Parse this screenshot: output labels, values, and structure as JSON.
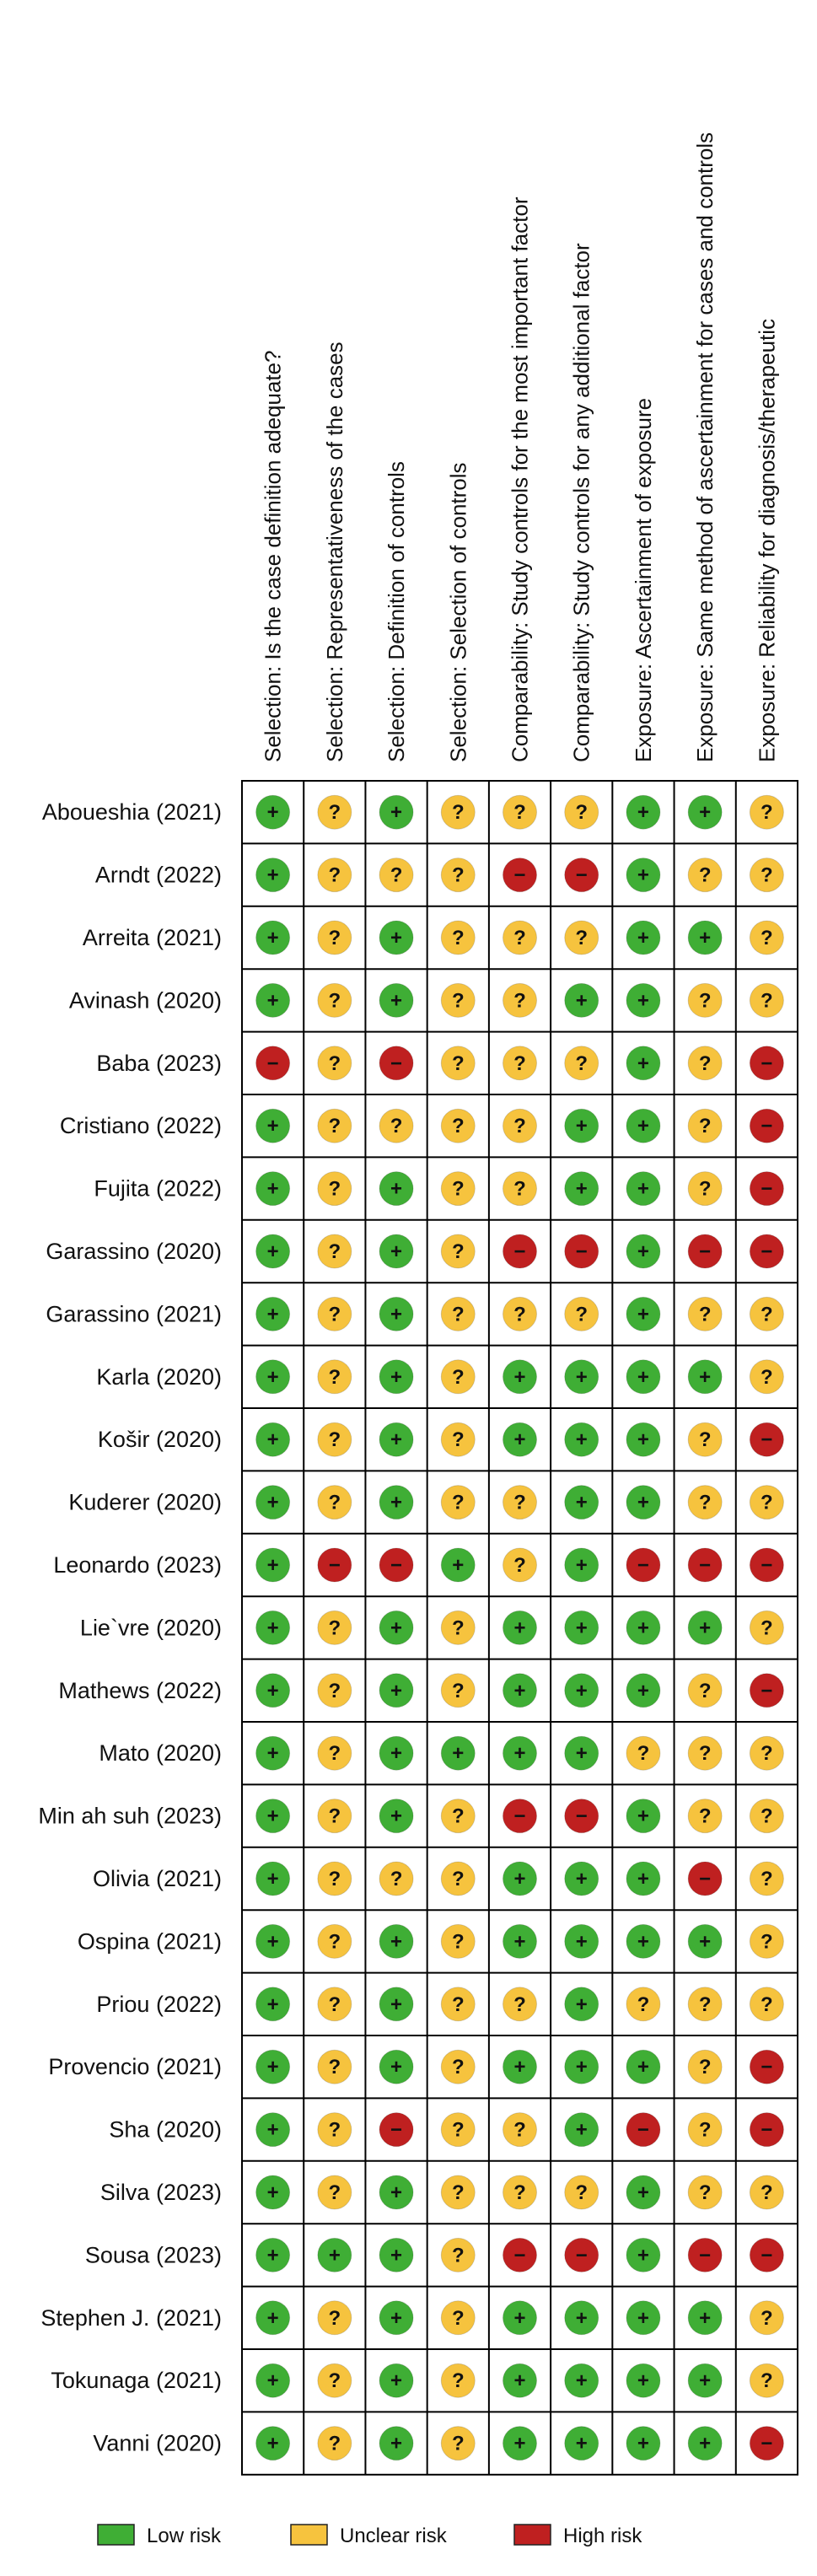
{
  "columns": [
    "Selection: Is the case definition adequate?",
    "Selection: Representativeness of the cases",
    "Selection: Definition of controls",
    "Selection: Selection of controls",
    "Comparability: Study controls for the most important factor",
    "Comparability: Study controls for any additional factor",
    "Exposure: Ascertainment of exposure",
    "Exposure: Same method of ascertainment for cases and controls",
    "Exposure: Reliability for diagnosis/therapeutic"
  ],
  "rows": [
    {
      "study": "Aboueshia (2021)",
      "ratings": [
        "+",
        "?",
        "+",
        "?",
        "?",
        "?",
        "+",
        "+",
        "?"
      ]
    },
    {
      "study": "Arndt (2022)",
      "ratings": [
        "+",
        "?",
        "?",
        "?",
        "−",
        "−",
        "+",
        "?",
        "?"
      ]
    },
    {
      "study": "Arreita (2021)",
      "ratings": [
        "+",
        "?",
        "+",
        "?",
        "?",
        "?",
        "+",
        "+",
        "?"
      ]
    },
    {
      "study": "Avinash (2020)",
      "ratings": [
        "+",
        "?",
        "+",
        "?",
        "?",
        "+",
        "+",
        "?",
        "?"
      ]
    },
    {
      "study": "Baba (2023)",
      "ratings": [
        "−",
        "?",
        "−",
        "?",
        "?",
        "?",
        "+",
        "?",
        "−"
      ]
    },
    {
      "study": "Cristiano (2022)",
      "ratings": [
        "+",
        "?",
        "?",
        "?",
        "?",
        "+",
        "+",
        "?",
        "−"
      ]
    },
    {
      "study": "Fujita (2022)",
      "ratings": [
        "+",
        "?",
        "+",
        "?",
        "?",
        "+",
        "+",
        "?",
        "−"
      ]
    },
    {
      "study": "Garassino (2020)",
      "ratings": [
        "+",
        "?",
        "+",
        "?",
        "−",
        "−",
        "+",
        "−",
        "−"
      ]
    },
    {
      "study": "Garassino (2021)",
      "ratings": [
        "+",
        "?",
        "+",
        "?",
        "?",
        "?",
        "+",
        "?",
        "?"
      ]
    },
    {
      "study": "Karla (2020)",
      "ratings": [
        "+",
        "?",
        "+",
        "?",
        "+",
        "+",
        "+",
        "+",
        "?"
      ]
    },
    {
      "study": "Košir (2020)",
      "ratings": [
        "+",
        "?",
        "+",
        "?",
        "+",
        "+",
        "+",
        "?",
        "−"
      ]
    },
    {
      "study": "Kuderer (2020)",
      "ratings": [
        "+",
        "?",
        "+",
        "?",
        "?",
        "+",
        "+",
        "?",
        "?"
      ]
    },
    {
      "study": "Leonardo (2023)",
      "ratings": [
        "+",
        "−",
        "−",
        "+",
        "?",
        "+",
        "−",
        "−",
        "−"
      ]
    },
    {
      "study": "Lie`vre (2020)",
      "ratings": [
        "+",
        "?",
        "+",
        "?",
        "+",
        "+",
        "+",
        "+",
        "?"
      ]
    },
    {
      "study": "Mathews (2022)",
      "ratings": [
        "+",
        "?",
        "+",
        "?",
        "+",
        "+",
        "+",
        "?",
        "−"
      ]
    },
    {
      "study": "Mato (2020)",
      "ratings": [
        "+",
        "?",
        "+",
        "+",
        "+",
        "+",
        "?",
        "?",
        "?"
      ]
    },
    {
      "study": "Min ah suh (2023)",
      "ratings": [
        "+",
        "?",
        "+",
        "?",
        "−",
        "−",
        "+",
        "?",
        "?"
      ]
    },
    {
      "study": "Olivia (2021)",
      "ratings": [
        "+",
        "?",
        "?",
        "?",
        "+",
        "+",
        "+",
        "−",
        "?"
      ]
    },
    {
      "study": "Ospina (2021)",
      "ratings": [
        "+",
        "?",
        "+",
        "?",
        "+",
        "+",
        "+",
        "+",
        "?"
      ]
    },
    {
      "study": "Priou (2022)",
      "ratings": [
        "+",
        "?",
        "+",
        "?",
        "?",
        "+",
        "?",
        "?",
        "?"
      ]
    },
    {
      "study": "Provencio (2021)",
      "ratings": [
        "+",
        "?",
        "+",
        "?",
        "+",
        "+",
        "+",
        "?",
        "−"
      ]
    },
    {
      "study": "Sha (2020)",
      "ratings": [
        "+",
        "?",
        "−",
        "?",
        "?",
        "+",
        "−",
        "?",
        "−"
      ]
    },
    {
      "study": "Silva (2023)",
      "ratings": [
        "+",
        "?",
        "+",
        "?",
        "?",
        "?",
        "+",
        "?",
        "?"
      ]
    },
    {
      "study": "Sousa (2023)",
      "ratings": [
        "+",
        "+",
        "+",
        "?",
        "−",
        "−",
        "+",
        "−",
        "−"
      ]
    },
    {
      "study": "Stephen J. (2021)",
      "ratings": [
        "+",
        "?",
        "+",
        "?",
        "+",
        "+",
        "+",
        "+",
        "?"
      ]
    },
    {
      "study": "Tokunaga (2021)",
      "ratings": [
        "+",
        "?",
        "+",
        "?",
        "+",
        "+",
        "+",
        "+",
        "?"
      ]
    },
    {
      "study": "Vanni (2020)",
      "ratings": [
        "+",
        "?",
        "+",
        "?",
        "+",
        "+",
        "+",
        "+",
        "−"
      ]
    }
  ],
  "legend": [
    {
      "symbol": "+",
      "label": "Low risk",
      "color": "#3fae35"
    },
    {
      "symbol": "?",
      "label": "Unclear risk",
      "color": "#f6c33e"
    },
    {
      "symbol": "−",
      "label": "High risk",
      "color": "#bf2020"
    }
  ]
}
